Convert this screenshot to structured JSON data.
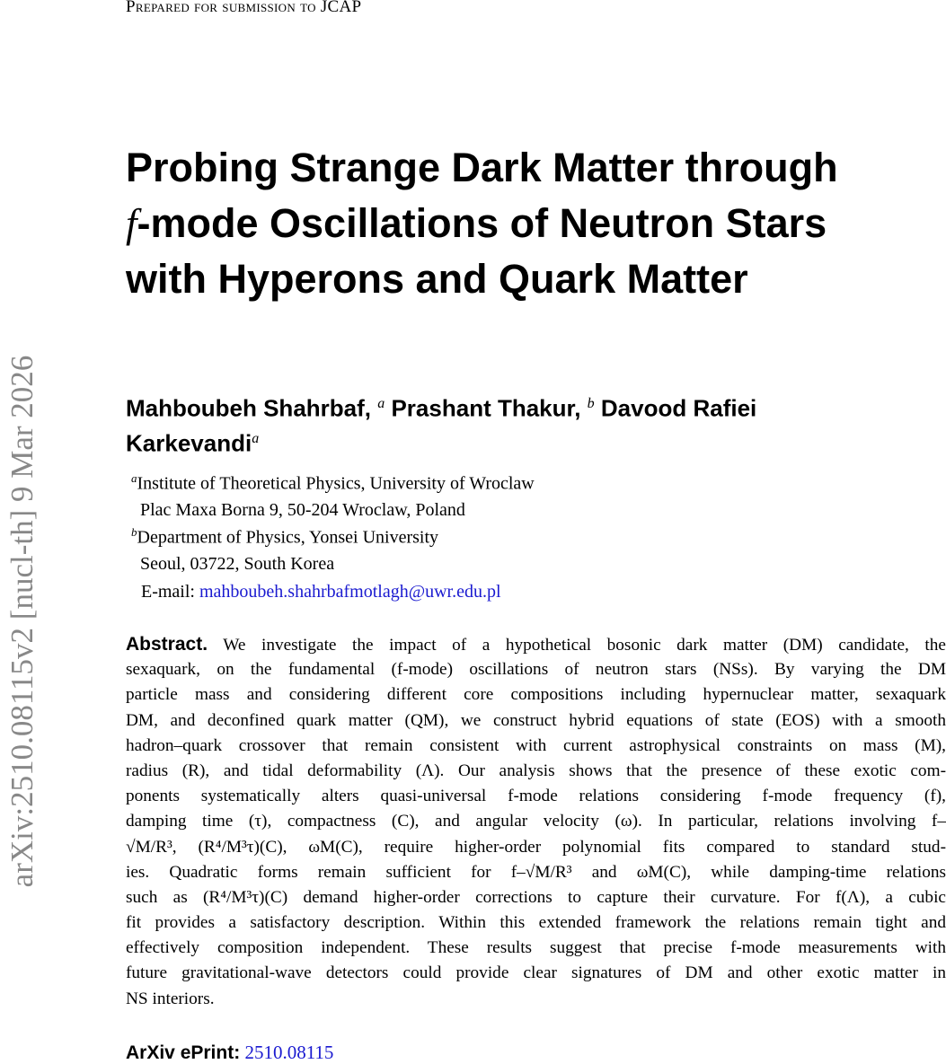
{
  "header": "Prepared for submission to JCAP",
  "side_stamp": "arXiv:2510.08115v2  [nucl-th]  9 Mar 2026",
  "title_lines": [
    "Probing Strange Dark Matter through",
    "-mode Oscillations of Neutron Stars",
    "with Hyperons and Quark Matter"
  ],
  "title_symbol": "f",
  "authors": {
    "a1": "Mahboubeh Shahrbaf,",
    "a1_sup": "a",
    "a2": "Prashant Thakur,",
    "a2_sup": "b",
    "a3": "Davood Rafiei",
    "a3b": "Karkevandi",
    "a3_sup": "a"
  },
  "affiliations": [
    {
      "sup": "a",
      "line1": "Institute of Theoretical Physics, University of Wroclaw",
      "line2": "Plac Maxa Borna 9, 50-204 Wroclaw, Poland"
    },
    {
      "sup": "b",
      "line1": "Department of Physics, Yonsei University",
      "line2": "Seoul, 03722, South Korea"
    }
  ],
  "email_label": "E-mail:",
  "email": "mahboubeh.shahrbafmotlagh@uwr.edu.pl",
  "abstract": {
    "label": "Abstract.",
    "lines": [
      "We investigate the impact of a hypothetical bosonic dark matter (DM) candidate, the",
      "sexaquark, on the fundamental (f-mode) oscillations of neutron stars (NSs).  By varying the DM",
      "particle mass and considering different core compositions including hypernuclear matter, sexaquark",
      "DM, and deconfined quark matter (QM), we construct hybrid equations of state (EOS) with a smooth",
      "hadron–quark crossover that remain consistent with current astrophysical constraints on mass (M),",
      "radius (R), and tidal deformability (Λ).  Our analysis shows that the presence of these exotic com-",
      "ponents systematically alters quasi-universal f-mode relations considering f-mode frequency (f),",
      "damping time (τ), compactness (C), and angular velocity (ω).  In particular, relations involving f–",
      "√M/R³, (R⁴/M³τ)(C), ωM(C), require higher-order polynomial fits compared to standard stud-",
      "ies.  Quadratic forms remain sufficient for f–√M/R³ and ωM(C), while damping-time relations",
      "such as (R⁴/M³τ)(C) demand higher-order corrections to capture their curvature. For f(Λ), a cubic",
      "fit provides a satisfactory description. Within this extended framework the relations remain tight and",
      "effectively composition independent. These results suggest that precise f-mode measurements with",
      "future gravitational-wave detectors could provide clear signatures of DM and other exotic matter in",
      "NS interiors."
    ]
  },
  "eprint": {
    "label": "ArXiv ePrint:",
    "id": "2510.08115"
  }
}
